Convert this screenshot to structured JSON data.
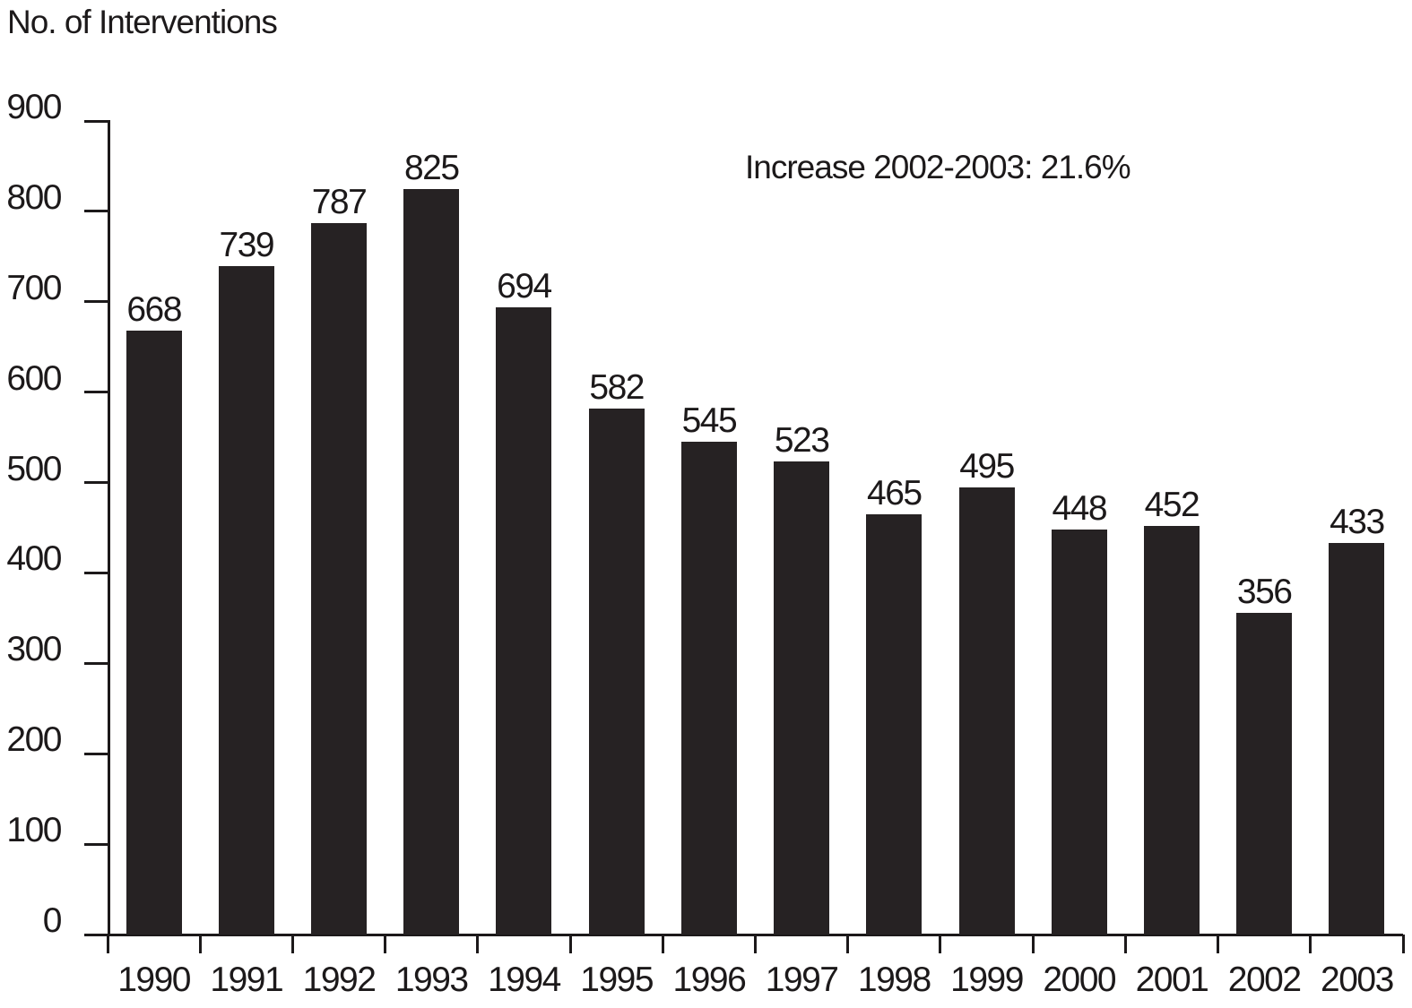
{
  "chart_data": {
    "type": "bar",
    "title": "No. of Interventions",
    "annotation": "Increase 2002-2003: 21.6%",
    "categories": [
      "1990",
      "1991",
      "1992",
      "1993",
      "1994",
      "1995",
      "1996",
      "1997",
      "1998",
      "1999",
      "2000",
      "2001",
      "2002",
      "2003"
    ],
    "values": [
      668,
      739,
      787,
      825,
      694,
      582,
      545,
      523,
      465,
      495,
      448,
      452,
      356,
      433
    ],
    "xlabel": "",
    "ylabel": "",
    "ylim": [
      0,
      900
    ],
    "ytick_interval": 100,
    "yticks": [
      0,
      100,
      200,
      300,
      400,
      500,
      600,
      700,
      800,
      900
    ],
    "grid": false,
    "legend": "none",
    "value_labels_shown": true,
    "bar_color": "#262223",
    "axis_color": "#1c191a",
    "text_color": "#1c191a",
    "background_color": "#ffffff"
  }
}
